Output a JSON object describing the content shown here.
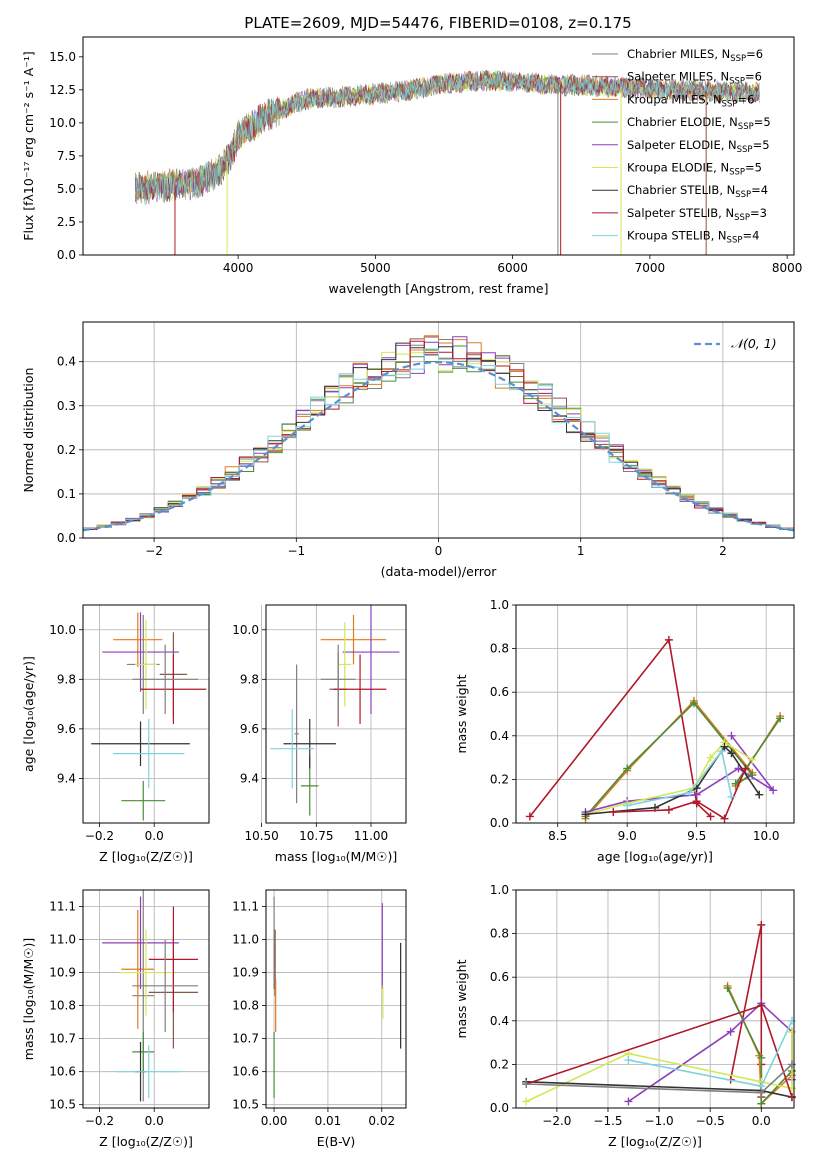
{
  "title": "PLATE=2609, MJD=54476, FIBERID=0108, z=0.175",
  "colors": {
    "palette": [
      "#1f77b4",
      "#ff7f0e",
      "#2ca02c",
      "#d62728",
      "#9467bd",
      "#8c564b",
      "#e377c2",
      "#7f7f7f",
      "#bcbd22",
      "#17becf"
    ],
    "series": [
      "#7f7f7f",
      "#8c564b",
      "#e07b20",
      "#4a8c3a",
      "#8e3fbf",
      "#d4e857",
      "#333333",
      "#b2182b",
      "#7fd3dc"
    ],
    "normal": "#5b8fd0"
  },
  "chart_data": [
    {
      "id": "spectrum",
      "type": "line",
      "xlabel": "wavelength [Angstrom, rest frame]",
      "ylabel": "Flux [fλ10⁻¹⁷ erg cm⁻² s⁻¹ A⁻¹]",
      "xlim": [
        2870,
        8050
      ],
      "ylim": [
        0,
        16.5
      ],
      "xticks": [
        "4000",
        "5000",
        "6000",
        "7000",
        "8000"
      ],
      "yticks": [
        "0.0",
        "2.5",
        "5.0",
        "7.5",
        "10.0",
        "12.5",
        "15.0"
      ],
      "legend_position": "right",
      "series": [
        {
          "name": "Chabrier MILES, N_SSP=6"
        },
        {
          "name": "Salpeter MILES, N_SSP=6"
        },
        {
          "name": "Kroupa MILES, N_SSP=6"
        },
        {
          "name": "Chabrier ELODIE, N_SSP=5"
        },
        {
          "name": "Salpeter ELODIE, N_SSP=5"
        },
        {
          "name": "Kroupa ELODIE, N_SSP=5"
        },
        {
          "name": "Chabrier STELIB, N_SSP=4"
        },
        {
          "name": "Salpeter STELIB, N_SSP=3"
        },
        {
          "name": "Kroupa STELIB, N_SSP=4"
        }
      ],
      "continuum": {
        "x": [
          3250,
          3500,
          3700,
          3850,
          3950,
          4000,
          4200,
          4500,
          4800,
          5000,
          5200,
          5500,
          5800,
          6000,
          6300,
          6600,
          6800,
          7000,
          7200,
          7400,
          7600,
          7800
        ],
        "y": [
          5.0,
          5.3,
          5.5,
          6.2,
          7.5,
          9.0,
          10.5,
          11.8,
          12.0,
          12.2,
          12.4,
          13.0,
          13.2,
          13.1,
          12.9,
          12.8,
          12.7,
          12.6,
          12.5,
          12.4,
          12.3,
          12.3
        ]
      }
    },
    {
      "id": "residual-hist",
      "type": "bar",
      "xlabel": "(data-model)/error",
      "ylabel": "Normed distribution",
      "xlim": [
        -2.5,
        2.5
      ],
      "ylim": [
        0,
        0.49
      ],
      "xticks": [
        "−2",
        "−1",
        "0",
        "1",
        "2"
      ],
      "yticks": [
        "0.0",
        "0.1",
        "0.2",
        "0.3",
        "0.4"
      ],
      "legend": "𝒩(0, 1)",
      "legend_position": "top-right",
      "grid": true
    },
    {
      "id": "age-vs-Z",
      "type": "scatter",
      "xlabel": "Z [log₁₀(Z/Z☉)]",
      "ylabel": "age  [log₁₀(age/yr)]",
      "xlim": [
        -0.26,
        0.2
      ],
      "ylim": [
        9.22,
        10.1
      ],
      "xticks": [
        "−0.2",
        "0.0"
      ],
      "yticks": [
        "9.4",
        "9.6",
        "9.8",
        "10.0"
      ],
      "grid": true,
      "points": [
        {
          "x": -0.04,
          "y": 9.86,
          "xerr": 0.06,
          "yerr": 0.2
        },
        {
          "x": 0.07,
          "y": 9.82,
          "xerr": 0.05,
          "yerr": 0.17
        },
        {
          "x": -0.06,
          "y": 9.96,
          "xerr": 0.09,
          "yerr": 0.11
        },
        {
          "x": -0.04,
          "y": 9.31,
          "xerr": 0.08,
          "yerr": 0.08
        },
        {
          "x": -0.05,
          "y": 9.91,
          "xerr": 0.14,
          "yerr": 0.16
        },
        {
          "x": -0.03,
          "y": 9.86,
          "xerr": 0.04,
          "yerr": 0.18
        },
        {
          "x": -0.05,
          "y": 9.54,
          "xerr": 0.18,
          "yerr": 0.09
        },
        {
          "x": 0.07,
          "y": 9.76,
          "xerr": 0.12,
          "yerr": 0.14
        },
        {
          "x": -0.02,
          "y": 9.5,
          "xerr": 0.13,
          "yerr": 0.14
        },
        {
          "x": 0.04,
          "y": 9.8,
          "xerr": 0.12,
          "yerr": 0.14
        }
      ]
    },
    {
      "id": "age-vs-mass",
      "type": "scatter",
      "xlabel": "mass [log₁₀(M/M☉)]",
      "ylabel": "",
      "xlim": [
        10.52,
        11.16
      ],
      "ylim": [
        9.22,
        10.1
      ],
      "xticks": [
        "10.50",
        "10.75",
        "11.00"
      ],
      "yticks": [
        "9.4",
        "9.6",
        "9.8",
        "10.0"
      ],
      "grid": true,
      "points": [
        {
          "x": 10.66,
          "y": 9.58,
          "xerr": 0.01,
          "yerr": 0.28
        },
        {
          "x": 10.85,
          "y": 9.76,
          "xerr": 0.04,
          "yerr": 0.15
        },
        {
          "x": 10.92,
          "y": 9.96,
          "xerr": 0.15,
          "yerr": 0.1
        },
        {
          "x": 10.72,
          "y": 9.37,
          "xerr": 0.04,
          "yerr": 0.12
        },
        {
          "x": 11.0,
          "y": 9.91,
          "xerr": 0.13,
          "yerr": 0.25
        },
        {
          "x": 10.88,
          "y": 9.86,
          "xerr": 0.03,
          "yerr": 0.17
        },
        {
          "x": 10.72,
          "y": 9.54,
          "xerr": 0.12,
          "yerr": 0.1
        },
        {
          "x": 10.95,
          "y": 9.76,
          "xerr": 0.12,
          "yerr": 0.14
        },
        {
          "x": 10.64,
          "y": 9.52,
          "xerr": 0.1,
          "yerr": 0.16
        },
        {
          "x": 10.85,
          "y": 9.8,
          "xerr": 0.08,
          "yerr": 0.14
        }
      ]
    },
    {
      "id": "massweight-vs-age",
      "type": "line",
      "xlabel": "age  [log₁₀(age/yr)]",
      "ylabel": "mass weight",
      "xlim": [
        8.2,
        10.2
      ],
      "ylim": [
        0,
        1.0
      ],
      "xticks": [
        "8.5",
        "9.0",
        "9.5",
        "10.0"
      ],
      "yticks": [
        "0.0",
        "0.2",
        "0.4",
        "0.6",
        "0.8",
        "1.0"
      ],
      "grid": true,
      "series": [
        {
          "x": [
            8.3,
            9.3,
            9.5,
            9.6
          ],
          "y": [
            0.03,
            0.84,
            0.09,
            0.03
          ]
        },
        {
          "x": [
            8.7,
            9.0,
            9.48,
            9.9,
            9.78,
            10.1
          ],
          "y": [
            0.02,
            0.24,
            0.56,
            0.23,
            0.17,
            0.49
          ]
        },
        {
          "x": [
            8.7,
            9.0,
            9.48,
            9.9,
            9.78,
            10.1
          ],
          "y": [
            0.03,
            0.25,
            0.55,
            0.22,
            0.18,
            0.48
          ]
        },
        {
          "x": [
            8.7,
            9.0,
            9.5,
            9.8,
            10.05,
            9.75
          ],
          "y": [
            0.05,
            0.1,
            0.13,
            0.25,
            0.15,
            0.4
          ]
        },
        {
          "x": [
            8.7,
            9.0,
            9.48,
            9.6,
            9.7,
            9.9
          ],
          "y": [
            0.04,
            0.09,
            0.16,
            0.3,
            0.37,
            0.29
          ]
        },
        {
          "x": [
            8.7,
            9.2,
            9.5,
            9.7,
            9.75,
            9.95
          ],
          "y": [
            0.04,
            0.07,
            0.16,
            0.35,
            0.32,
            0.13
          ]
        },
        {
          "x": [
            8.9,
            9.3,
            9.5,
            9.7,
            9.85
          ],
          "y": [
            0.05,
            0.06,
            0.1,
            0.02,
            0.25
          ]
        },
        {
          "x": [
            9.0,
            9.45,
            9.68,
            9.75
          ],
          "y": [
            0.08,
            0.14,
            0.33,
            0.12
          ]
        }
      ]
    },
    {
      "id": "mass-vs-Z",
      "type": "scatter",
      "xlabel": "Z [log₁₀(Z/Z☉)]",
      "ylabel": "mass [log₁₀(M/M☉)]",
      "xlim": [
        -0.26,
        0.2
      ],
      "ylim": [
        10.49,
        11.15
      ],
      "xticks": [
        "−0.2",
        "0.0"
      ],
      "yticks": [
        "10.5",
        "10.6",
        "10.7",
        "10.8",
        "10.9",
        "11.0",
        "11.1"
      ],
      "grid": true,
      "points": [
        {
          "x": -0.04,
          "y": 10.83,
          "xerr": 0.04,
          "yerr": 0.32
        },
        {
          "x": 0.07,
          "y": 10.84,
          "xerr": 0.09,
          "yerr": 0.17
        },
        {
          "x": -0.06,
          "y": 10.91,
          "xerr": 0.06,
          "yerr": 0.18
        },
        {
          "x": -0.04,
          "y": 10.66,
          "xerr": 0.04,
          "yerr": 0.06
        },
        {
          "x": -0.05,
          "y": 10.99,
          "xerr": 0.14,
          "yerr": 0.14
        },
        {
          "x": -0.03,
          "y": 10.9,
          "xerr": 0.1,
          "yerr": 0.13
        },
        {
          "x": -0.05,
          "y": 10.6,
          "xerr": 0.02,
          "yerr": 0.09
        },
        {
          "x": 0.07,
          "y": 10.94,
          "xerr": 0.09,
          "yerr": 0.16
        },
        {
          "x": -0.02,
          "y": 10.6,
          "xerr": 0.12,
          "yerr": 0.08
        },
        {
          "x": 0.04,
          "y": 10.86,
          "xerr": 0.12,
          "yerr": 0.14
        }
      ]
    },
    {
      "id": "mass-vs-EBV",
      "type": "scatter",
      "xlabel": "E(B-V)",
      "ylabel": "",
      "xlim": [
        -0.0015,
        0.0245
      ],
      "ylim": [
        10.49,
        11.15
      ],
      "xticks": [
        "0.00",
        "0.01",
        "0.02"
      ],
      "yticks": [
        "10.5",
        "10.6",
        "10.7",
        "10.8",
        "10.9",
        "11.0",
        "11.1"
      ],
      "grid": true,
      "points": [
        {
          "x": 0.0,
          "y": 10.99,
          "yerr": 0.14
        },
        {
          "x": 0.0002,
          "y": 10.93,
          "yerr": 0.1
        },
        {
          "x": 0.0003,
          "y": 10.8,
          "yerr": 0.08
        },
        {
          "x": 0.0,
          "y": 10.62,
          "yerr": 0.1
        },
        {
          "x": 0.0201,
          "y": 10.98,
          "yerr": 0.13
        },
        {
          "x": 0.0202,
          "y": 10.81,
          "yerr": 0.05
        },
        {
          "x": 0.0235,
          "y": 10.83,
          "yerr": 0.16
        }
      ]
    },
    {
      "id": "massweight-vs-Z",
      "type": "line",
      "xlabel": "Z [log₁₀(Z/Z☉)]",
      "ylabel": "mass weight",
      "xlim": [
        -2.4,
        0.32
      ],
      "ylim": [
        0,
        1.0
      ],
      "xticks": [
        "−2.0",
        "−1.5",
        "−1.0",
        "−0.5",
        "0.0"
      ],
      "yticks": [
        "0.0",
        "0.2",
        "0.4",
        "0.6",
        "0.8",
        "1.0"
      ],
      "grid": true,
      "series": [
        {
          "x": [
            -0.3,
            0.0,
            0.0,
            0.0
          ],
          "y": [
            0.13,
            0.84,
            0.2,
            0.05
          ]
        },
        {
          "x": [
            -0.33,
            -0.02,
            0.0,
            0.3
          ],
          "y": [
            0.56,
            0.24,
            0.02,
            0.15
          ]
        },
        {
          "x": [
            -0.33,
            0.0,
            0.0,
            0.3
          ],
          "y": [
            0.55,
            0.23,
            0.02,
            0.17
          ]
        },
        {
          "x": [
            -1.3,
            -0.3,
            0.0,
            0.3,
            0.3
          ],
          "y": [
            0.03,
            0.35,
            0.48,
            0.35,
            0.13
          ]
        },
        {
          "x": [
            -2.3,
            -1.3,
            0.0,
            0.3,
            0.3
          ],
          "y": [
            0.03,
            0.25,
            0.12,
            0.09,
            0.35
          ]
        },
        {
          "x": [
            -2.3,
            0.0,
            0.3
          ],
          "y": [
            0.12,
            0.08,
            0.05
          ]
        },
        {
          "x": [
            -2.3,
            0.0,
            0.3
          ],
          "y": [
            0.11,
            0.47,
            0.05
          ]
        },
        {
          "x": [
            -1.3,
            0.0,
            0.3
          ],
          "y": [
            0.22,
            0.1,
            0.4
          ]
        },
        {
          "x": [
            -2.3,
            0.0,
            0.3
          ],
          "y": [
            0.11,
            0.07,
            0.2
          ]
        }
      ]
    }
  ]
}
